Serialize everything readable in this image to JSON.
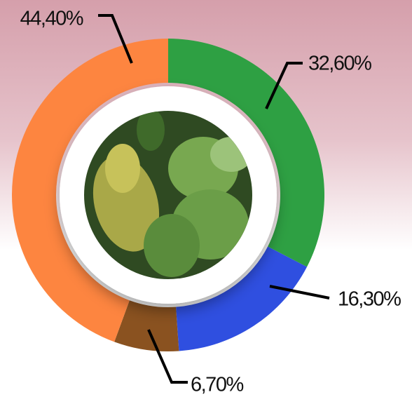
{
  "chart_data": {
    "type": "donut",
    "values": [
      32.6,
      16.3,
      6.7,
      44.4
    ],
    "value_labels": [
      "32,60%",
      "16,30%",
      "6,70%",
      "44,40%"
    ],
    "colors": [
      "#2ea043",
      "#2f4fe0",
      "#8a5220",
      "#fd8540"
    ]
  }
}
